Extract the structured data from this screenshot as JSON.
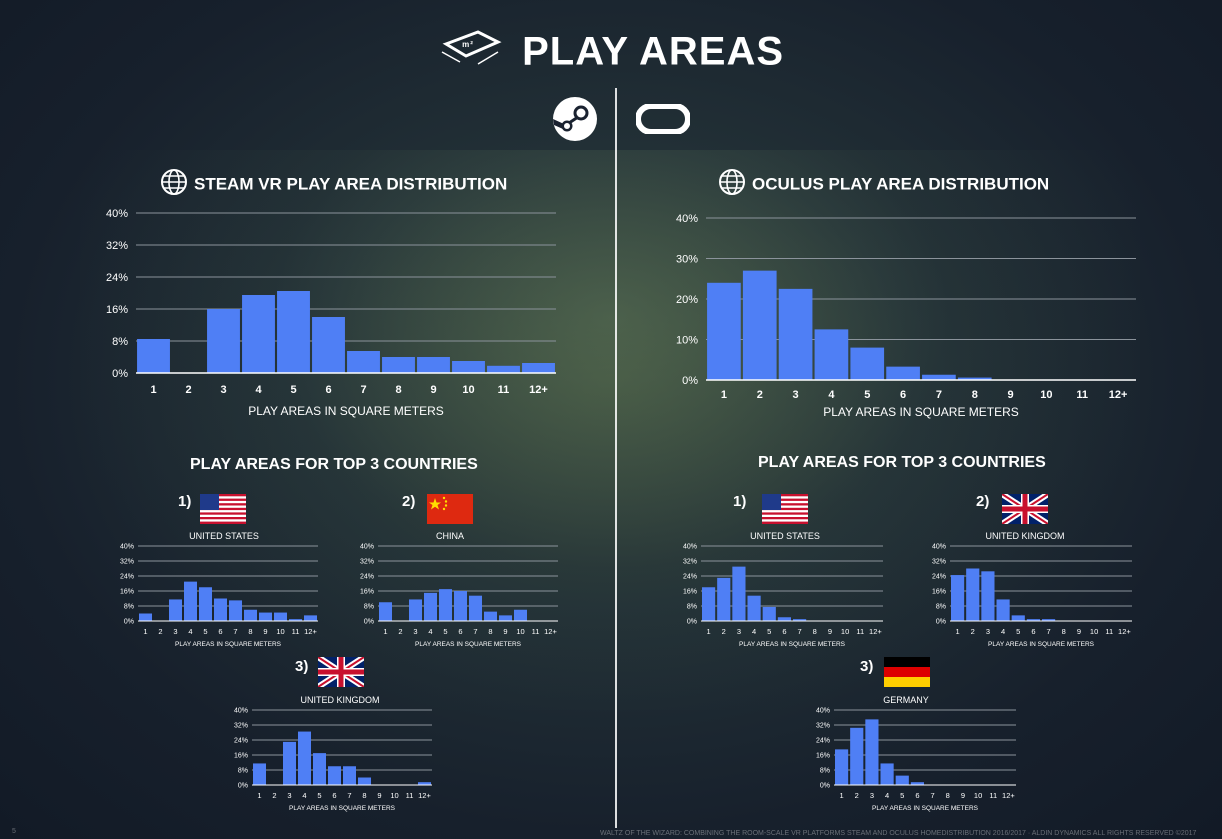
{
  "title": "PLAY AREAS",
  "area_icon_label": "m²",
  "icons": {
    "area": "floor-area-icon",
    "steam": "steam-logo-icon",
    "oculus": "oculus-logo-icon",
    "globe": "globe-icon"
  },
  "colors": {
    "bar": "#4f7ff5",
    "grid": "#8b939b",
    "text": "#ffffff"
  },
  "steam": {
    "section_title": "STEAM VR PLAY AREA DISTRIBUTION",
    "countries_title": "PLAY AREAS FOR TOP 3 COUNTRIES",
    "countries": [
      {
        "rank": "1)",
        "name": "UNITED STATES",
        "flag": "us-flag"
      },
      {
        "rank": "2)",
        "name": "CHINA",
        "flag": "china-flag"
      },
      {
        "rank": "3)",
        "name": "UNITED KINGDOM",
        "flag": "uk-flag"
      }
    ]
  },
  "oculus": {
    "section_title": "OCULUS PLAY AREA DISTRIBUTION",
    "countries_title": "PLAY AREAS FOR TOP 3 COUNTRIES",
    "countries": [
      {
        "rank": "1)",
        "name": "UNITED STATES",
        "flag": "us-flag"
      },
      {
        "rank": "2)",
        "name": "UNITED KINGDOM",
        "flag": "uk-flag"
      },
      {
        "rank": "3)",
        "name": "GERMANY",
        "flag": "germany-flag"
      }
    ]
  },
  "page_number": "5",
  "footer": "WALTZ OF THE WIZARD: COMBINING THE ROOM-SCALE VR PLATFORMS STEAM AND OCULUS HOMEDISTRIBUTION 2016/2017 · ALDIN DYNAMICS ALL RIGHTS RESERVED ©2017",
  "chart_data": [
    {
      "id": "steam-main",
      "type": "bar",
      "categories": [
        "1",
        "2",
        "3",
        "4",
        "5",
        "6",
        "7",
        "8",
        "9",
        "10",
        "11",
        "12+"
      ],
      "values": [
        8.5,
        0,
        16,
        19.5,
        20.5,
        14,
        5.5,
        4,
        4,
        3,
        1.8,
        2.5
      ],
      "yticks": [
        "0%",
        "8%",
        "16%",
        "24%",
        "32%",
        "40%"
      ],
      "ylim": [
        0,
        40
      ],
      "xlabel": "PLAY AREAS IN SQUARE METERS"
    },
    {
      "id": "oculus-main",
      "type": "bar",
      "categories": [
        "1",
        "2",
        "3",
        "4",
        "5",
        "6",
        "7",
        "8",
        "9",
        "10",
        "11",
        "12+"
      ],
      "values": [
        24,
        27,
        22.5,
        12.5,
        8,
        3.3,
        1.3,
        0.6,
        0,
        0,
        0,
        0
      ],
      "yticks": [
        "0%",
        "10%",
        "20%",
        "30%",
        "40%"
      ],
      "ylim": [
        0,
        40
      ],
      "xlabel": "PLAY AREAS IN SQUARE METERS"
    },
    {
      "id": "steam-us",
      "type": "bar",
      "categories": [
        "1",
        "2",
        "3",
        "4",
        "5",
        "6",
        "7",
        "8",
        "9",
        "10",
        "11",
        "12+"
      ],
      "values": [
        4,
        0,
        11.5,
        21,
        18,
        12,
        11,
        6,
        4.5,
        4.5,
        1,
        3
      ],
      "yticks": [
        "0%",
        "8%",
        "16%",
        "24%",
        "32%",
        "40%"
      ],
      "ylim": [
        0,
        40
      ],
      "xlabel": "PLAY AREAS IN SQUARE METERS"
    },
    {
      "id": "steam-cn",
      "type": "bar",
      "categories": [
        "1",
        "2",
        "3",
        "4",
        "5",
        "6",
        "7",
        "8",
        "9",
        "10",
        "11",
        "12+"
      ],
      "values": [
        10,
        0,
        11.5,
        15,
        17,
        16,
        13.5,
        5,
        3,
        6,
        0,
        0
      ],
      "yticks": [
        "0%",
        "8%",
        "16%",
        "24%",
        "32%",
        "40%"
      ],
      "ylim": [
        0,
        40
      ],
      "xlabel": "PLAY AREAS IN SQUARE METERS"
    },
    {
      "id": "steam-uk",
      "type": "bar",
      "categories": [
        "1",
        "2",
        "3",
        "4",
        "5",
        "6",
        "7",
        "8",
        "9",
        "10",
        "11",
        "12+"
      ],
      "values": [
        11.5,
        0,
        23,
        28.5,
        17,
        10,
        10,
        4,
        0,
        0,
        0,
        1.5
      ],
      "yticks": [
        "0%",
        "8%",
        "16%",
        "24%",
        "32%",
        "40%"
      ],
      "ylim": [
        0,
        40
      ],
      "xlabel": "PLAY AREAS IN SQUARE METERS"
    },
    {
      "id": "oculus-us",
      "type": "bar",
      "categories": [
        "1",
        "2",
        "3",
        "4",
        "5",
        "6",
        "7",
        "8",
        "9",
        "10",
        "11",
        "12+"
      ],
      "values": [
        18,
        23,
        29,
        13.5,
        7.5,
        2,
        1,
        0,
        0,
        0,
        0,
        0
      ],
      "yticks": [
        "0%",
        "8%",
        "16%",
        "24%",
        "32%",
        "40%"
      ],
      "ylim": [
        0,
        40
      ],
      "xlabel": "PLAY AREAS IN SQUARE METERS"
    },
    {
      "id": "oculus-uk",
      "type": "bar",
      "categories": [
        "1",
        "2",
        "3",
        "4",
        "5",
        "6",
        "7",
        "8",
        "9",
        "10",
        "11",
        "12+"
      ],
      "values": [
        24.5,
        28,
        26.5,
        11.5,
        3,
        1,
        1,
        0,
        0,
        0,
        0,
        0
      ],
      "yticks": [
        "0%",
        "8%",
        "16%",
        "24%",
        "32%",
        "40%"
      ],
      "ylim": [
        0,
        40
      ],
      "xlabel": "PLAY AREAS IN SQUARE METERS"
    },
    {
      "id": "oculus-de",
      "type": "bar",
      "categories": [
        "1",
        "2",
        "3",
        "4",
        "5",
        "6",
        "7",
        "8",
        "9",
        "10",
        "11",
        "12+"
      ],
      "values": [
        19,
        30.5,
        35,
        11.5,
        5,
        1.5,
        0,
        0,
        0,
        0,
        0,
        0
      ],
      "yticks": [
        "0%",
        "8%",
        "16%",
        "24%",
        "32%",
        "40%"
      ],
      "ylim": [
        0,
        40
      ],
      "xlabel": "PLAY AREAS IN SQUARE METERS"
    }
  ]
}
